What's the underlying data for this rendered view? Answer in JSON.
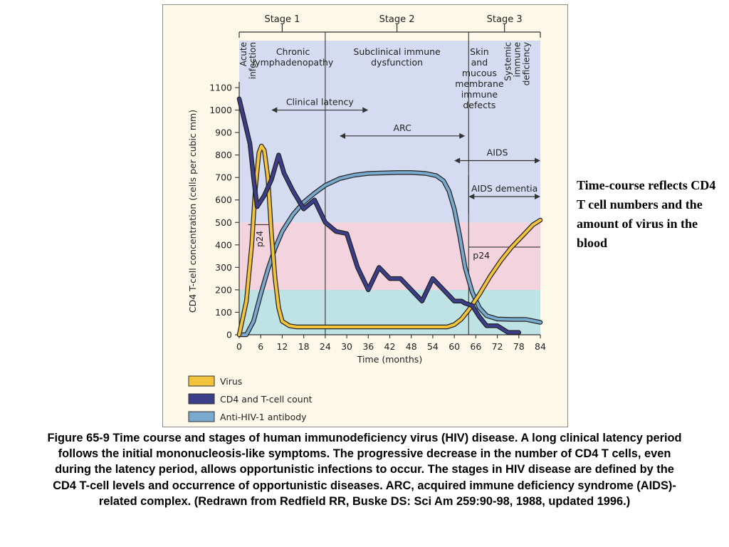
{
  "side_note": "Time-course reflects CD4 T cell numbers and the amount of virus in the blood",
  "caption": "Figure 65-9 Time course and stages of human immunodeficiency virus (HIV) disease. A long clinical latency period follows the initial mononucleosis-like symptoms. The progressive decrease in the number of CD4 T cells, even during the latency period, allows opportunistic infections to occur. The stages in HIV disease are defined by the CD4 T-cell levels and occurrence of opportunistic diseases. ARC, acquired immune deficiency syndrome (AIDS)-related complex. (Redrawn from Redfield RR, Buske DS: Sci Am 259:90-98, 1988, updated 1996.)",
  "colors": {
    "virus": "#f2c33b",
    "cd4": "#3c3e8a",
    "antibody": "#79a9cc",
    "band_low": "#bfe3e4",
    "band_mid": "#f2d3de",
    "band_high": "#d5dcf1",
    "figure_bg": "#fdf8e8"
  },
  "chart_data": {
    "type": "line",
    "xlabel": "Time (months)",
    "ylabel": "CD4 T-cell concentration (cells per cubic mm)",
    "xlim": [
      0,
      84
    ],
    "ylim": [
      0,
      1100
    ],
    "xticks": [
      0,
      6,
      12,
      18,
      24,
      30,
      36,
      42,
      48,
      54,
      60,
      66,
      72,
      78,
      84
    ],
    "yticks": [
      0,
      100,
      200,
      300,
      400,
      500,
      600,
      700,
      800,
      900,
      1000,
      1100
    ],
    "background_bands": [
      {
        "from": 0,
        "to": 200,
        "color": "band_low"
      },
      {
        "from": 200,
        "to": 500,
        "color": "band_mid"
      },
      {
        "from": 500,
        "to": 1100,
        "color": "band_high"
      }
    ],
    "stages": [
      {
        "label": "Stage 1",
        "from": 0,
        "to": 24
      },
      {
        "label": "Stage 2",
        "from": 24,
        "to": 64
      },
      {
        "label": "Stage 3",
        "from": 64,
        "to": 84
      }
    ],
    "stage_dividers": [
      24,
      64
    ],
    "phase_labels": [
      {
        "lines": [
          "Acute",
          "infection"
        ],
        "x": 2.5,
        "rotated": true
      },
      {
        "lines": [
          "Chronic",
          "lymphadenopathy"
        ],
        "x": 15,
        "rotated": false
      },
      {
        "lines": [
          "Subclinical immune",
          "dysfunction"
        ],
        "x": 44,
        "rotated": false
      },
      {
        "lines": [
          "Skin",
          "and",
          "mucous",
          "membrane",
          "immune",
          "defects"
        ],
        "x": 67,
        "rotated": false
      },
      {
        "lines": [
          "Systemic",
          "immune",
          "deficiency"
        ],
        "x": 77.5,
        "rotated": true
      }
    ],
    "ranges": [
      {
        "label": "Clinical latency",
        "from": 9,
        "to": 36,
        "y": 1000
      },
      {
        "label": "ARC",
        "from": 28,
        "to": 63,
        "y": 885
      },
      {
        "label": "AIDS",
        "from": 60,
        "to": 84,
        "y": 775
      },
      {
        "label": "AIDS dementia",
        "from": 64,
        "to": 84,
        "y": 615
      }
    ],
    "p24_markers": [
      {
        "label": "p24",
        "x_from": 2.5,
        "x_to": 9,
        "y": 490,
        "rotated": true
      },
      {
        "label": "p24",
        "x_from": 64,
        "x_to": 84,
        "y": 390,
        "rotated": false
      }
    ],
    "series": [
      {
        "name": "Virus",
        "color": "virus",
        "x": [
          0,
          2,
          3.5,
          4.5,
          5.5,
          6.2,
          7,
          8,
          9,
          10,
          11,
          12,
          14,
          16,
          20,
          30,
          45,
          58,
          60,
          62,
          64,
          67,
          70,
          73,
          76,
          79,
          82,
          84
        ],
        "y": [
          0,
          150,
          400,
          650,
          810,
          840,
          820,
          700,
          450,
          250,
          120,
          60,
          40,
          35,
          35,
          35,
          35,
          35,
          45,
          70,
          110,
          180,
          260,
          330,
          390,
          440,
          490,
          510
        ]
      },
      {
        "name": "CD4 and T-cell count",
        "color": "cd4",
        "x": [
          0,
          1.5,
          3,
          4,
          5,
          7,
          9,
          11,
          12.5,
          15,
          18,
          21,
          24,
          27,
          30,
          33,
          36,
          39,
          42,
          45,
          48,
          51,
          54,
          57,
          60,
          62,
          63,
          65,
          67,
          69,
          72,
          75,
          78
        ],
        "y": [
          1050,
          950,
          850,
          700,
          570,
          620,
          690,
          800,
          720,
          640,
          560,
          600,
          500,
          460,
          450,
          300,
          200,
          300,
          250,
          250,
          200,
          150,
          250,
          200,
          150,
          150,
          140,
          130,
          80,
          40,
          40,
          10,
          10
        ]
      },
      {
        "name": "Anti-HIV-1 antibody",
        "color": "antibody",
        "x": [
          0,
          2,
          4,
          6,
          8,
          10,
          12,
          15,
          18,
          21,
          24,
          28,
          32,
          36,
          40,
          44,
          48,
          52,
          55,
          57,
          58.5,
          60,
          61.5,
          63,
          65,
          67,
          69,
          72,
          76,
          80,
          84
        ],
        "y": [
          0,
          0,
          60,
          180,
          290,
          385,
          460,
          535,
          590,
          630,
          665,
          695,
          710,
          718,
          720,
          722,
          722,
          718,
          708,
          685,
          640,
          560,
          440,
          300,
          190,
          120,
          85,
          70,
          68,
          68,
          55
        ]
      }
    ]
  }
}
